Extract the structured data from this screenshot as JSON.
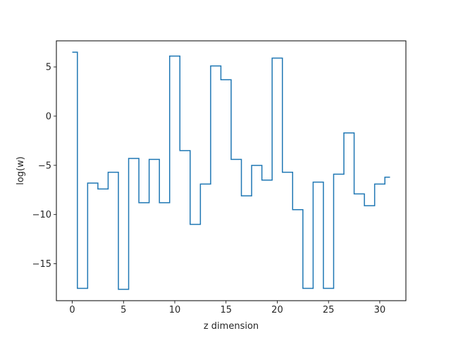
{
  "chart_data": {
    "type": "line",
    "drawstyle": "steps-mid",
    "xlabel": "z dimension",
    "ylabel": "log(w)",
    "xlim": [
      -1.55,
      32.55
    ],
    "ylim": [
      -18.75,
      7.65
    ],
    "x_ticks": [
      0,
      5,
      10,
      15,
      20,
      25,
      30
    ],
    "y_ticks": [
      -15,
      -10,
      -5,
      0,
      5
    ],
    "grid": false,
    "legend": "none",
    "series_color": "#1f77b4",
    "x": [
      0,
      1,
      2,
      3,
      4,
      5,
      6,
      7,
      8,
      9,
      10,
      11,
      12,
      13,
      14,
      15,
      16,
      17,
      18,
      19,
      20,
      21,
      22,
      23,
      24,
      25,
      26,
      27,
      28,
      29,
      30,
      31
    ],
    "y": [
      6.5,
      -17.5,
      -6.8,
      -7.4,
      -5.7,
      -17.6,
      -4.3,
      -8.8,
      -4.4,
      -8.8,
      6.1,
      -3.5,
      -11.0,
      -6.9,
      5.1,
      3.7,
      -4.4,
      -8.1,
      -5.0,
      -6.5,
      5.9,
      -5.7,
      -9.5,
      -17.5,
      -6.7,
      -17.5,
      -5.9,
      -1.7,
      -7.9,
      -9.1,
      -6.9,
      -6.2
    ]
  }
}
